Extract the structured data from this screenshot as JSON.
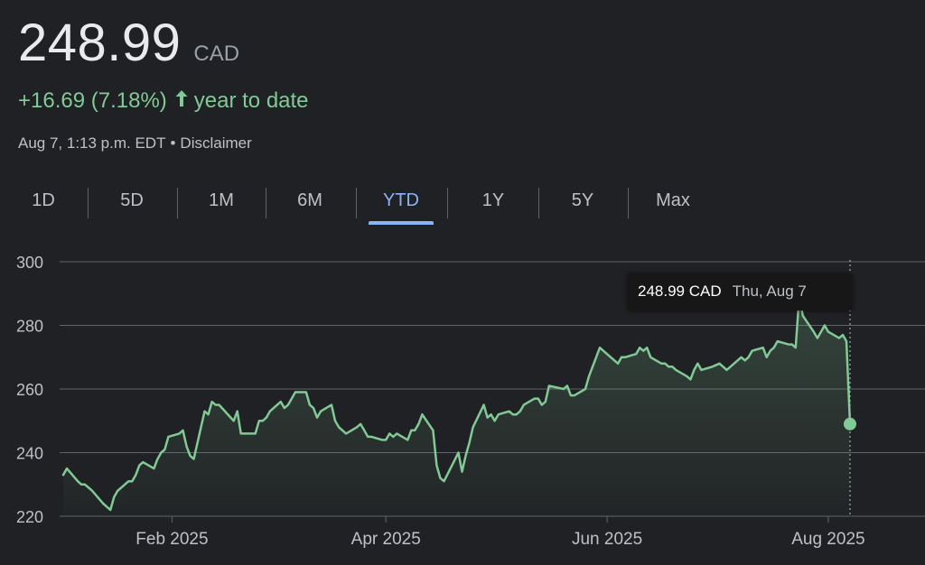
{
  "quote": {
    "price": "248.99",
    "currency": "CAD",
    "change": "+16.69 (7.18%)",
    "arrow_icon": "arrow-up-icon",
    "period_label": "year to date",
    "timestamp": "Aug 7, 1:13 p.m. EDT",
    "separator": "•",
    "disclaimer": "Disclaimer"
  },
  "colors": {
    "positive": "#81c995",
    "accent": "#8ab4f8",
    "background": "#202124"
  },
  "tabs": [
    "1D",
    "5D",
    "1M",
    "6M",
    "YTD",
    "1Y",
    "5Y",
    "Max"
  ],
  "active_tab": "YTD",
  "tooltip": {
    "price": "248.99 CAD",
    "date": "Thu, Aug 7"
  },
  "chart_data": {
    "type": "area",
    "x_tick_labels": [
      "Feb 2025",
      "Apr 2025",
      "Jun 2025",
      "Aug 2025"
    ],
    "x_tick_dates": [
      "2025-02-01",
      "2025-04-01",
      "2025-06-01",
      "2025-08-01"
    ],
    "y_ticks": [
      220,
      240,
      260,
      280,
      300
    ],
    "ylim": [
      220,
      300
    ],
    "xlim": [
      "2025-01-01",
      "2025-08-08"
    ],
    "grid": true,
    "highlight_point": {
      "date": "2025-08-07",
      "value": 248.99
    },
    "series": [
      {
        "values": [
          [
            "2025-01-02",
            233
          ],
          [
            "2025-01-03",
            235
          ],
          [
            "2025-01-06",
            231
          ],
          [
            "2025-01-07",
            230
          ],
          [
            "2025-01-08",
            230
          ],
          [
            "2025-01-09",
            229
          ],
          [
            "2025-01-10",
            228
          ],
          [
            "2025-01-13",
            224
          ],
          [
            "2025-01-14",
            223
          ],
          [
            "2025-01-15",
            222
          ],
          [
            "2025-01-16",
            226
          ],
          [
            "2025-01-17",
            228
          ],
          [
            "2025-01-20",
            231
          ],
          [
            "2025-01-21",
            231
          ],
          [
            "2025-01-22",
            233
          ],
          [
            "2025-01-23",
            236
          ],
          [
            "2025-01-24",
            237
          ],
          [
            "2025-01-27",
            235
          ],
          [
            "2025-01-28",
            238
          ],
          [
            "2025-01-29",
            240
          ],
          [
            "2025-01-30",
            241
          ],
          [
            "2025-01-31",
            245
          ],
          [
            "2025-02-03",
            246
          ],
          [
            "2025-02-04",
            247
          ],
          [
            "2025-02-05",
            242
          ],
          [
            "2025-02-06",
            239
          ],
          [
            "2025-02-07",
            238
          ],
          [
            "2025-02-10",
            253
          ],
          [
            "2025-02-11",
            252
          ],
          [
            "2025-02-12",
            256
          ],
          [
            "2025-02-13",
            255
          ],
          [
            "2025-02-14",
            255
          ],
          [
            "2025-02-18",
            250
          ],
          [
            "2025-02-19",
            253
          ],
          [
            "2025-02-20",
            246
          ],
          [
            "2025-02-21",
            246
          ],
          [
            "2025-02-24",
            246
          ],
          [
            "2025-02-25",
            250
          ],
          [
            "2025-02-26",
            250
          ],
          [
            "2025-02-27",
            251
          ],
          [
            "2025-02-28",
            253
          ],
          [
            "2025-03-03",
            256
          ],
          [
            "2025-03-04",
            254
          ],
          [
            "2025-03-05",
            255
          ],
          [
            "2025-03-06",
            257
          ],
          [
            "2025-03-07",
            259
          ],
          [
            "2025-03-10",
            259
          ],
          [
            "2025-03-11",
            255
          ],
          [
            "2025-03-12",
            254
          ],
          [
            "2025-03-13",
            251
          ],
          [
            "2025-03-14",
            253
          ],
          [
            "2025-03-17",
            255
          ],
          [
            "2025-03-18",
            250
          ],
          [
            "2025-03-19",
            248
          ],
          [
            "2025-03-20",
            247
          ],
          [
            "2025-03-21",
            246
          ],
          [
            "2025-03-24",
            248
          ],
          [
            "2025-03-25",
            249
          ],
          [
            "2025-03-26",
            247
          ],
          [
            "2025-03-27",
            245
          ],
          [
            "2025-03-28",
            245
          ],
          [
            "2025-03-31",
            244
          ],
          [
            "2025-04-01",
            244
          ],
          [
            "2025-04-02",
            246
          ],
          [
            "2025-04-03",
            245
          ],
          [
            "2025-04-04",
            246
          ],
          [
            "2025-04-07",
            244
          ],
          [
            "2025-04-08",
            247
          ],
          [
            "2025-04-09",
            247
          ],
          [
            "2025-04-10",
            249
          ],
          [
            "2025-04-11",
            252
          ],
          [
            "2025-04-14",
            247
          ],
          [
            "2025-04-15",
            236
          ],
          [
            "2025-04-16",
            232
          ],
          [
            "2025-04-17",
            231
          ],
          [
            "2025-04-21",
            240
          ],
          [
            "2025-04-22",
            234
          ],
          [
            "2025-04-23",
            239
          ],
          [
            "2025-04-24",
            243
          ],
          [
            "2025-04-25",
            248
          ],
          [
            "2025-04-28",
            255
          ],
          [
            "2025-04-29",
            251
          ],
          [
            "2025-04-30",
            252
          ],
          [
            "2025-05-01",
            250
          ],
          [
            "2025-05-02",
            252
          ],
          [
            "2025-05-05",
            253
          ],
          [
            "2025-05-06",
            252
          ],
          [
            "2025-05-07",
            252
          ],
          [
            "2025-05-08",
            253
          ],
          [
            "2025-05-09",
            255
          ],
          [
            "2025-05-12",
            257
          ],
          [
            "2025-05-13",
            257
          ],
          [
            "2025-05-14",
            255
          ],
          [
            "2025-05-15",
            256
          ],
          [
            "2025-05-16",
            261
          ],
          [
            "2025-05-20",
            260
          ],
          [
            "2025-05-21",
            261
          ],
          [
            "2025-05-22",
            258
          ],
          [
            "2025-05-23",
            258
          ],
          [
            "2025-05-26",
            260
          ],
          [
            "2025-05-27",
            264
          ],
          [
            "2025-05-28",
            267
          ],
          [
            "2025-05-29",
            270
          ],
          [
            "2025-05-30",
            273
          ],
          [
            "2025-06-02",
            270
          ],
          [
            "2025-06-03",
            269
          ],
          [
            "2025-06-04",
            268
          ],
          [
            "2025-06-05",
            270
          ],
          [
            "2025-06-06",
            270
          ],
          [
            "2025-06-09",
            271
          ],
          [
            "2025-06-10",
            273
          ],
          [
            "2025-06-11",
            272
          ],
          [
            "2025-06-12",
            273
          ],
          [
            "2025-06-13",
            270
          ],
          [
            "2025-06-16",
            268
          ],
          [
            "2025-06-17",
            268
          ],
          [
            "2025-06-18",
            267
          ],
          [
            "2025-06-19",
            267
          ],
          [
            "2025-06-20",
            266
          ],
          [
            "2025-06-23",
            264
          ],
          [
            "2025-06-24",
            263
          ],
          [
            "2025-06-25",
            266
          ],
          [
            "2025-06-26",
            268
          ],
          [
            "2025-06-27",
            266
          ],
          [
            "2025-06-30",
            267
          ],
          [
            "2025-07-02",
            268
          ],
          [
            "2025-07-03",
            267
          ],
          [
            "2025-07-04",
            266
          ],
          [
            "2025-07-07",
            269
          ],
          [
            "2025-07-08",
            270
          ],
          [
            "2025-07-09",
            269
          ],
          [
            "2025-07-10",
            270
          ],
          [
            "2025-07-11",
            272
          ],
          [
            "2025-07-14",
            273
          ],
          [
            "2025-07-15",
            270
          ],
          [
            "2025-07-16",
            272
          ],
          [
            "2025-07-17",
            273
          ],
          [
            "2025-07-18",
            275
          ],
          [
            "2025-07-21",
            274
          ],
          [
            "2025-07-22",
            274
          ],
          [
            "2025-07-23",
            273
          ],
          [
            "2025-07-24",
            289
          ],
          [
            "2025-07-25",
            283
          ],
          [
            "2025-07-28",
            278
          ],
          [
            "2025-07-29",
            276
          ],
          [
            "2025-07-30",
            278
          ],
          [
            "2025-07-31",
            280
          ],
          [
            "2025-08-01",
            278
          ],
          [
            "2025-08-04",
            276
          ],
          [
            "2025-08-05",
            277
          ],
          [
            "2025-08-06",
            275
          ],
          [
            "2025-08-07",
            248.99
          ]
        ]
      }
    ]
  }
}
